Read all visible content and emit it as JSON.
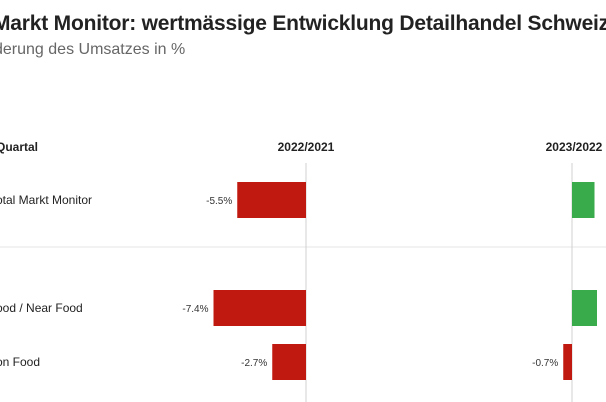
{
  "header": {
    "title": "Markt Monitor: wertmässige Entwicklung Detailhandel Schweiz",
    "subtitle": "derung des Umsatzes in %"
  },
  "colors": {
    "negative": "#c0190f",
    "positive": "#3aab4a",
    "axis": "#d0d0d0",
    "separator": "#e6e6e6"
  },
  "chart_data": {
    "type": "bar",
    "orientation": "horizontal",
    "row_header": "Quartal",
    "categories": [
      "otal Markt Monitor",
      "ood / Near Food",
      "on Food"
    ],
    "series": [
      {
        "name": "2022/2021",
        "values": [
          -5.5,
          -7.4,
          -2.7
        ],
        "labels": [
          "-5.5%",
          "-7.4%",
          "-2.7%"
        ]
      },
      {
        "name": "2023/2022",
        "values": [
          1.8,
          2.0,
          -0.7
        ],
        "labels": [
          "",
          "",
          "-0.7%"
        ]
      }
    ],
    "grid": false,
    "legend": "none"
  }
}
